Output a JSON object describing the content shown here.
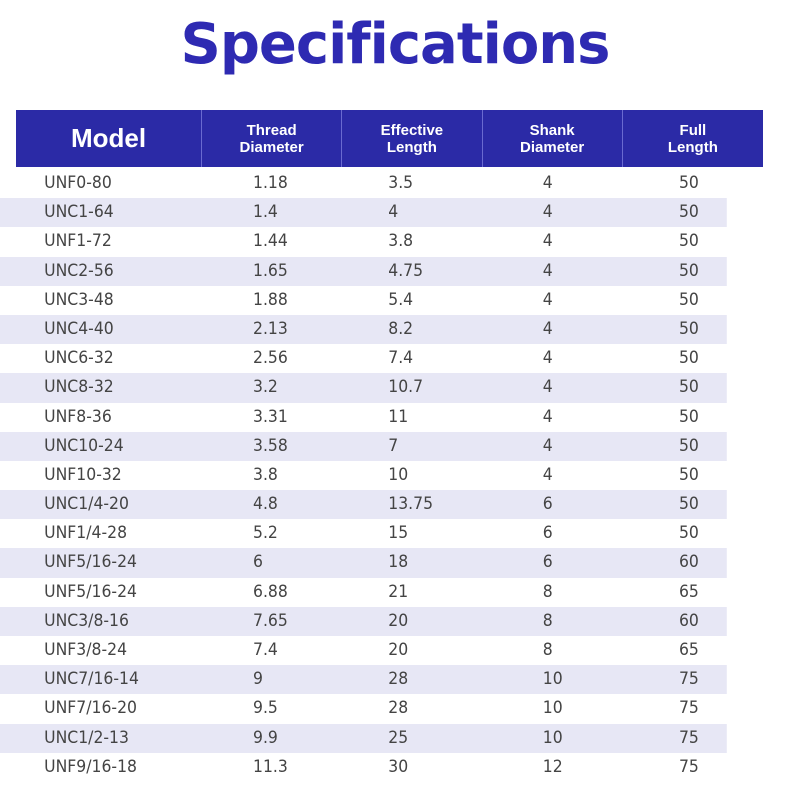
{
  "title": "Specifications",
  "header": [
    "Model",
    "Thread\nDiameter",
    "Effective\nLength",
    "Shank\nDiameter",
    "Full\nLength"
  ],
  "colors": {
    "header_bg": "#2b2aa6",
    "title": "#2e2ab2",
    "stripe": "#e7e7f5"
  },
  "rows": [
    [
      "UNF0-80",
      "1.18",
      "3.5",
      "4",
      "50"
    ],
    [
      "UNC1-64",
      "1.4",
      "4",
      "4",
      "50"
    ],
    [
      "UNF1-72",
      "1.44",
      "3.8",
      "4",
      "50"
    ],
    [
      "UNC2-56",
      "1.65",
      "4.75",
      "4",
      "50"
    ],
    [
      "UNC3-48",
      "1.88",
      "5.4",
      "4",
      "50"
    ],
    [
      "UNC4-40",
      "2.13",
      "8.2",
      "4",
      "50"
    ],
    [
      "UNC6-32",
      "2.56",
      "7.4",
      "4",
      "50"
    ],
    [
      "UNC8-32",
      "3.2",
      "10.7",
      "4",
      "50"
    ],
    [
      "UNF8-36",
      "3.31",
      "11",
      "4",
      "50"
    ],
    [
      "UNC10-24",
      "3.58",
      "7",
      "4",
      "50"
    ],
    [
      "UNF10-32",
      "3.8",
      "10",
      "4",
      "50"
    ],
    [
      "UNC1/4-20",
      "4.8",
      "13.75",
      "6",
      "50"
    ],
    [
      "UNF1/4-28",
      "5.2",
      "15",
      "6",
      "50"
    ],
    [
      "UNF5/16-24",
      "6",
      "18",
      "6",
      "60"
    ],
    [
      "UNF5/16-24",
      "6.88",
      "21",
      "8",
      "65"
    ],
    [
      "UNC3/8-16",
      "7.65",
      "20",
      "8",
      "60"
    ],
    [
      "UNF3/8-24",
      "7.4",
      "20",
      "8",
      "65"
    ],
    [
      "UNC7/16-14",
      "9",
      "28",
      "10",
      "75"
    ],
    [
      "UNF7/16-20",
      "9.5",
      "28",
      "10",
      "75"
    ],
    [
      "UNC1/2-13",
      "9.9",
      "25",
      "10",
      "75"
    ],
    [
      "UNF9/16-18",
      "11.3",
      "30",
      "12",
      "75"
    ]
  ]
}
